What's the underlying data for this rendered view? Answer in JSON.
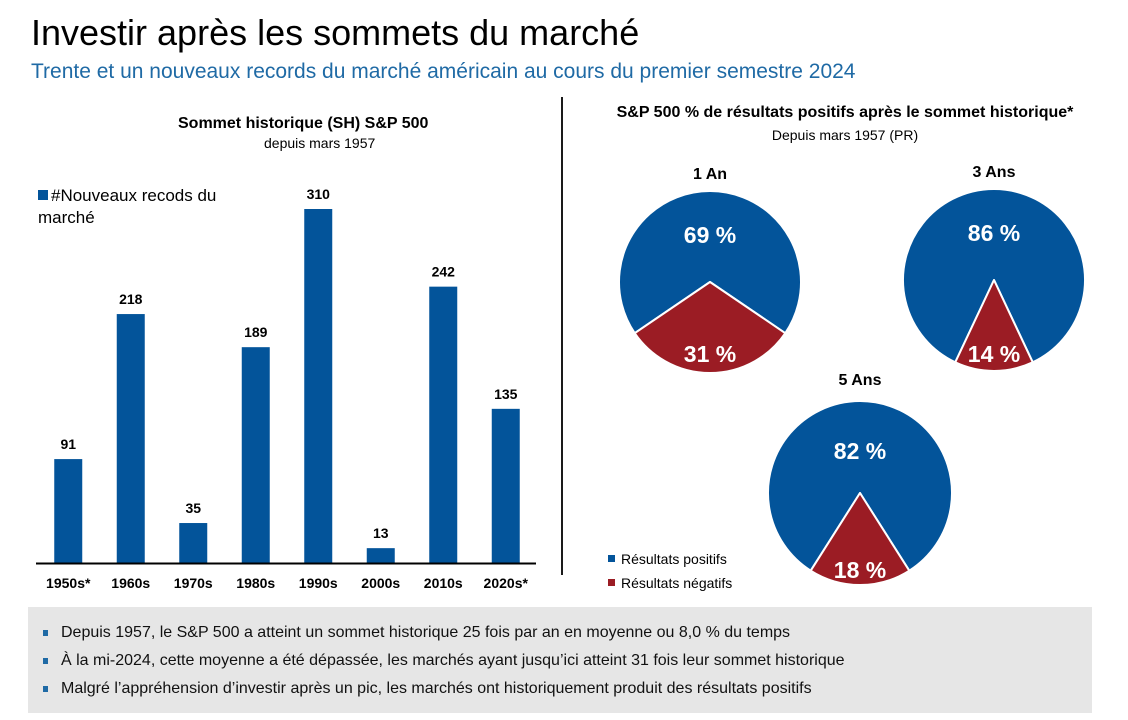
{
  "header": {
    "title": "Investir après les sommets du marché",
    "subtitle": "Trente et un nouveaux records du marché américain au cours du premier semestre 2024"
  },
  "colors": {
    "bar": "#03549a",
    "positive": "#03549a",
    "negative": "#9b1c24",
    "subtitle": "#1f6aa5",
    "panel_bg": "#e6e6e6"
  },
  "chart_data": [
    {
      "type": "bar",
      "title": "Sommet historique (SH) S&P 500",
      "subtitle": "depuis mars 1957",
      "legend": "#Nouveaux recods du marché",
      "legend_position": "top-left",
      "categories": [
        "1950s*",
        "1960s",
        "1970s",
        "1980s",
        "1990s",
        "2000s",
        "2010s",
        "2020s*"
      ],
      "values": [
        91,
        218,
        35,
        189,
        310,
        13,
        242,
        135
      ],
      "xlabel": "",
      "ylabel": "",
      "ylim": [
        0,
        310
      ],
      "grid": false
    },
    {
      "type": "pie",
      "group_title": "S&P 500 % de résultats positifs après le sommet historique*",
      "group_subtitle": "Depuis mars 1957 (PR)",
      "legend": [
        "Résultats positifs",
        "Résultats négatifs"
      ],
      "legend_position": "bottom-left",
      "pies": [
        {
          "title": "1 An",
          "positive": 69,
          "negative": 31,
          "positive_label": "69 %",
          "negative_label": "31 %"
        },
        {
          "title": "3 Ans",
          "positive": 86,
          "negative": 14,
          "positive_label": "86 %",
          "negative_label": "14 %"
        },
        {
          "title": "5 Ans",
          "positive": 82,
          "negative": 18,
          "positive_label": "82 %",
          "negative_label": "18 %"
        }
      ]
    }
  ],
  "notes": [
    "Depuis 1957, le S&P 500 a atteint un sommet historique 25 fois par an en moyenne ou 8,0 % du temps",
    "À la mi-2024, cette moyenne a été dépassée, les marchés ayant jusqu’ici atteint 31 fois leur sommet historique",
    "Malgré l’appréhension d’investir après un pic, les marchés ont historiquement produit des résultats positifs"
  ]
}
